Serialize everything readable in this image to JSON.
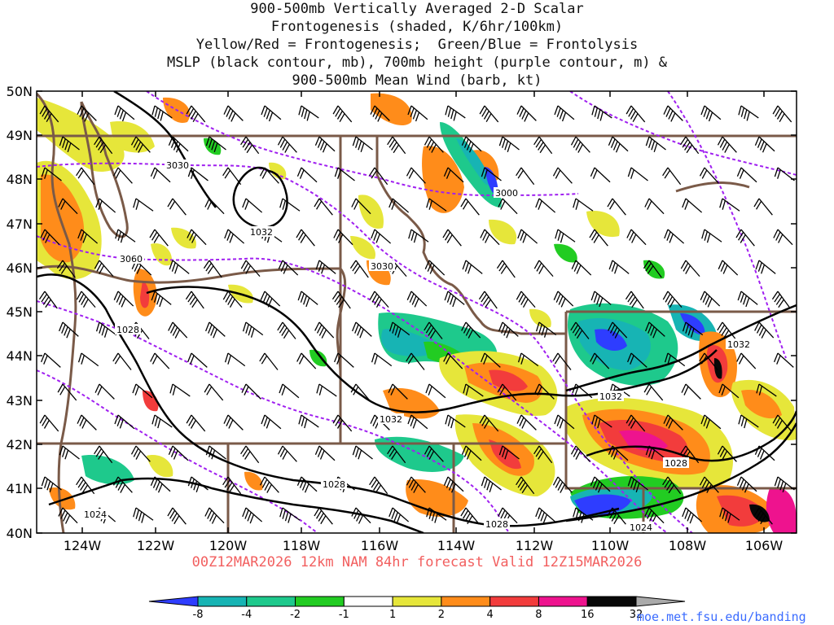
{
  "title_lines": [
    "900-500mb Vertically Averaged 2-D Scalar",
    "Frontogenesis (shaded, K/6hr/100km)",
    "Yellow/Red = Frontogenesis;  Green/Blue = Frontolysis",
    "MSLP (black contour, mb), 700mb height (purple contour, m) &",
    "900-500mb Mean Wind (barb, kt)"
  ],
  "footer": "00Z12MAR2026 12km NAM 84hr forecast Valid 12Z15MAR2026",
  "credit": "moe.met.fsu.edu/banding",
  "map": {
    "lat_labels": [
      "50N",
      "49N",
      "48N",
      "47N",
      "46N",
      "45N",
      "44N",
      "43N",
      "42N",
      "41N",
      "40N"
    ],
    "lon_labels": [
      "124W",
      "122W",
      "120W",
      "118W",
      "116W",
      "114W",
      "112W",
      "110W",
      "108W",
      "106W"
    ],
    "mslp_labels": [
      "1032",
      "1028",
      "1032",
      "1028",
      "1024",
      "1028",
      "1032",
      "1032",
      "1028",
      "1024"
    ],
    "height_labels": [
      "3030",
      "3060",
      "3030",
      "3000"
    ]
  },
  "colorbar": {
    "ticks": [
      "-8",
      "-4",
      "-2",
      "-1",
      "1",
      "2",
      "4",
      "8",
      "16",
      "32"
    ],
    "colors": [
      "#2e3dff",
      "#17b4b4",
      "#1ec98c",
      "#22cc22",
      "#ffffff",
      "#e6e63a",
      "#ff8c1a",
      "#f23c3c",
      "#ee138e",
      "#080808",
      "#aaaaaa"
    ]
  },
  "colors": {
    "mslp": "#000000",
    "height": "#a020f0",
    "borders": "#7a5a48",
    "footer": "#f25f5f",
    "credit": "#3b6cff"
  }
}
